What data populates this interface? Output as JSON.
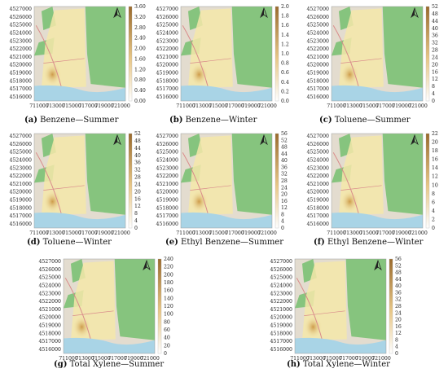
{
  "panels": [
    {
      "letter": "(a)",
      "caption": "Benzene—Summer",
      "y_ticks": [
        "4527000",
        "4526000",
        "4525000",
        "4524000",
        "4523000",
        "4522000",
        "4521000",
        "4520000",
        "4519000",
        "4518000",
        "4517000",
        "4516000"
      ],
      "x_ticks": [
        "711000",
        "713000",
        "715000",
        "717000",
        "719000",
        "721000"
      ],
      "colorbar_ticks": [
        "3.60",
        "3.20",
        "2.80",
        "2.40",
        "2.00",
        "1.60",
        "1.20",
        "0.80",
        "0.40",
        "0.00"
      ]
    },
    {
      "letter": "(b)",
      "caption": "Benzene—Winter",
      "y_ticks": [
        "4527000",
        "4526000",
        "4525000",
        "4524000",
        "4523000",
        "4522000",
        "4521000",
        "4520000",
        "4519000",
        "4518000",
        "4517000",
        "4516000"
      ],
      "x_ticks": [
        "711000",
        "713000",
        "715000",
        "717000",
        "719000",
        "721000"
      ],
      "colorbar_ticks": [
        "2.0",
        "1.8",
        "1.6",
        "1.4",
        "1.2",
        "1.0",
        "0.8",
        "0.6",
        "0.4",
        "0.2",
        "0.0"
      ]
    },
    {
      "letter": "(c)",
      "caption": "Toluene—Summer",
      "y_ticks": [
        "4527000",
        "4526000",
        "4525000",
        "4524000",
        "4523000",
        "4522000",
        "4521000",
        "4520000",
        "4519000",
        "4518000",
        "4517000",
        "4516000"
      ],
      "x_ticks": [
        "711000",
        "713000",
        "715000",
        "717000",
        "719000",
        "721000"
      ],
      "colorbar_ticks": [
        "52",
        "48",
        "44",
        "40",
        "36",
        "32",
        "28",
        "24",
        "20",
        "16",
        "12",
        "8",
        "4",
        "0"
      ]
    },
    {
      "letter": "(d)",
      "caption": "Toluene—Winter",
      "y_ticks": [
        "4527000",
        "4526000",
        "4525000",
        "4524000",
        "4523000",
        "4522000",
        "4521000",
        "4520000",
        "4519000",
        "4518000",
        "4517000",
        "4516000"
      ],
      "x_ticks": [
        "711000",
        "713000",
        "715000",
        "717000",
        "719000",
        "721000"
      ],
      "colorbar_ticks": [
        "52",
        "48",
        "44",
        "40",
        "36",
        "32",
        "28",
        "24",
        "20",
        "16",
        "12",
        "8",
        "4",
        "0"
      ]
    },
    {
      "letter": "(e)",
      "caption": "Ethyl Benzene—Summer",
      "y_ticks": [
        "4527000",
        "4526000",
        "4525000",
        "4524000",
        "4523000",
        "4522000",
        "4521000",
        "4520000",
        "4519000",
        "4518000",
        "4517000",
        "4516000"
      ],
      "x_ticks": [
        "711000",
        "713000",
        "715000",
        "717000",
        "719000",
        "721000"
      ],
      "colorbar_ticks": [
        "56",
        "52",
        "48",
        "44",
        "40",
        "36",
        "32",
        "28",
        "24",
        "20",
        "16",
        "12",
        "8",
        "4",
        "0"
      ]
    },
    {
      "letter": "(f)",
      "caption": "Ethyl Benzene—Winter",
      "y_ticks": [
        "4527000",
        "4526000",
        "4525000",
        "4524000",
        "4523000",
        "4522000",
        "4521000",
        "4520000",
        "4519000",
        "4518000",
        "4517000",
        "4516000"
      ],
      "x_ticks": [
        "711000",
        "713000",
        "715000",
        "717000",
        "719000",
        "721000"
      ],
      "colorbar_ticks": [
        "22",
        "20",
        "18",
        "16",
        "14",
        "12",
        "10",
        "8",
        "6",
        "4",
        "2",
        "0"
      ]
    },
    {
      "letter": "(g)",
      "caption": "Total Xylene—Summer",
      "y_ticks": [
        "4527000",
        "4526000",
        "4525000",
        "4524000",
        "4523000",
        "4522000",
        "4521000",
        "4520000",
        "4519000",
        "4518000",
        "4517000",
        "4516000"
      ],
      "x_ticks": [
        "711000",
        "713000",
        "715000",
        "717000",
        "719000",
        "721000"
      ],
      "colorbar_ticks": [
        "240",
        "220",
        "200",
        "180",
        "160",
        "140",
        "120",
        "100",
        "80",
        "60",
        "40",
        "20",
        "0"
      ]
    },
    {
      "letter": "(h)",
      "caption": "Total Xylene—Winter",
      "y_ticks": [
        "4527000",
        "4526000",
        "4525000",
        "4524000",
        "4523000",
        "4522000",
        "4521000",
        "4520000",
        "4519000",
        "4518000",
        "4517000",
        "4516000"
      ],
      "x_ticks": [
        "711000",
        "713000",
        "715000",
        "717000",
        "719000",
        "721000"
      ],
      "colorbar_ticks": [
        "56",
        "52",
        "48",
        "44",
        "40",
        "36",
        "32",
        "28",
        "24",
        "20",
        "16",
        "12",
        "8",
        "4",
        "0"
      ]
    }
  ],
  "colors": {
    "sea": "#a9d4e6",
    "forest": "#86c47e",
    "urban": "#e3dccf",
    "plume": "#f5e7a9",
    "hotspot": "#c9923e",
    "colorbar_top": "#9a6a2c",
    "colorbar_bottom": "#ffffff"
  },
  "icons": [
    "north-arrow-icon"
  ]
}
